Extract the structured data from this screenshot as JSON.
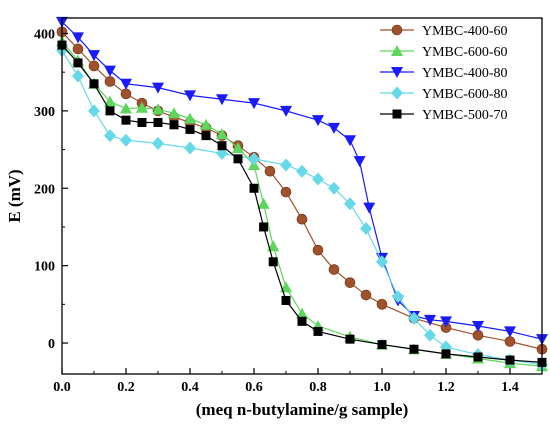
{
  "chart_data": {
    "type": "line",
    "xlabel": "(meq n-butylamine/g sample)",
    "ylabel": "E (mV)",
    "xlim": [
      0.0,
      1.5
    ],
    "ylim": [
      -40,
      420
    ],
    "x_ticks": [
      0.0,
      0.2,
      0.4,
      0.6,
      0.8,
      1.0,
      1.2,
      1.4
    ],
    "x_tick_labels": [
      "0.0",
      "0.2",
      "0.4",
      "0.6",
      "0.8",
      "1.0",
      "1.2",
      "1.4"
    ],
    "y_ticks": [
      0,
      100,
      200,
      300,
      400
    ],
    "y_tick_labels": [
      "0",
      "100",
      "200",
      "300",
      "400"
    ],
    "grid": false,
    "legend_position": "top-right",
    "series": [
      {
        "name": "YMBC-400-60",
        "color": "#a0522d",
        "marker": "circle",
        "x": [
          0.0,
          0.05,
          0.1,
          0.15,
          0.2,
          0.25,
          0.3,
          0.35,
          0.4,
          0.45,
          0.5,
          0.55,
          0.6,
          0.65,
          0.7,
          0.75,
          0.8,
          0.85,
          0.9,
          0.95,
          1.0,
          1.1,
          1.2,
          1.3,
          1.4,
          1.5
        ],
        "values": [
          402,
          380,
          358,
          338,
          322,
          310,
          300,
          292,
          285,
          278,
          268,
          255,
          240,
          222,
          195,
          160,
          120,
          95,
          78,
          62,
          50,
          32,
          20,
          10,
          2,
          -8
        ]
      },
      {
        "name": "YMBC-600-60",
        "color": "#5cd65c",
        "marker": "triangle-up",
        "x": [
          0.0,
          0.05,
          0.1,
          0.15,
          0.2,
          0.25,
          0.3,
          0.35,
          0.4,
          0.45,
          0.5,
          0.55,
          0.6,
          0.63,
          0.66,
          0.7,
          0.75,
          0.8,
          0.9,
          1.0,
          1.1,
          1.2,
          1.3,
          1.4,
          1.5
        ],
        "values": [
          390,
          365,
          335,
          312,
          303,
          304,
          302,
          297,
          290,
          282,
          270,
          252,
          230,
          180,
          125,
          72,
          38,
          22,
          8,
          -2,
          -8,
          -14,
          -20,
          -26,
          -30
        ]
      },
      {
        "name": "YMBC-400-80",
        "color": "#1a1aff",
        "marker": "triangle-down",
        "x": [
          0.0,
          0.05,
          0.1,
          0.15,
          0.2,
          0.3,
          0.4,
          0.5,
          0.6,
          0.7,
          0.8,
          0.85,
          0.9,
          0.93,
          0.96,
          1.0,
          1.05,
          1.1,
          1.15,
          1.2,
          1.3,
          1.4,
          1.5
        ],
        "values": [
          415,
          395,
          372,
          352,
          335,
          330,
          320,
          315,
          310,
          300,
          288,
          278,
          262,
          235,
          175,
          110,
          55,
          35,
          30,
          28,
          22,
          15,
          5
        ]
      },
      {
        "name": "YMBC-600-80",
        "color": "#66d9e8",
        "marker": "diamond",
        "x": [
          0.0,
          0.05,
          0.1,
          0.15,
          0.2,
          0.3,
          0.4,
          0.5,
          0.6,
          0.7,
          0.75,
          0.8,
          0.85,
          0.9,
          0.95,
          1.0,
          1.05,
          1.1,
          1.15,
          1.2,
          1.3,
          1.4,
          1.5
        ],
        "values": [
          378,
          345,
          300,
          268,
          262,
          258,
          252,
          245,
          238,
          230,
          222,
          212,
          200,
          180,
          148,
          105,
          60,
          32,
          10,
          -5,
          -15,
          -22,
          -28
        ]
      },
      {
        "name": "YMBC-500-70",
        "color": "#000000",
        "marker": "square",
        "x": [
          0.0,
          0.05,
          0.1,
          0.15,
          0.2,
          0.25,
          0.3,
          0.35,
          0.4,
          0.45,
          0.5,
          0.55,
          0.6,
          0.63,
          0.66,
          0.7,
          0.75,
          0.8,
          0.9,
          1.0,
          1.1,
          1.2,
          1.3,
          1.4,
          1.5
        ],
        "values": [
          385,
          362,
          335,
          300,
          288,
          285,
          285,
          282,
          276,
          268,
          255,
          238,
          200,
          150,
          105,
          55,
          28,
          15,
          5,
          -2,
          -8,
          -14,
          -18,
          -22,
          -25
        ]
      }
    ]
  }
}
